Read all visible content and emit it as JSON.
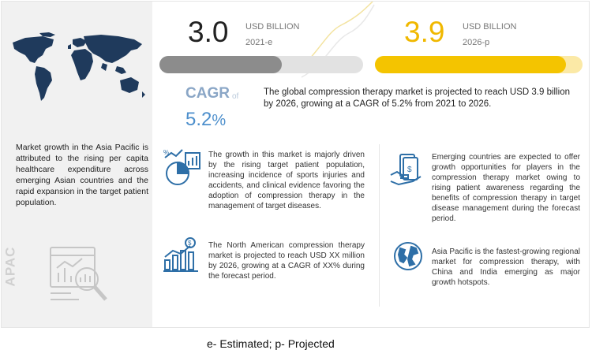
{
  "colors": {
    "gray_bar": "#8c8c8c",
    "yellow_bar": "#f4c400",
    "cagr_blue": "#4d8fcc",
    "apac_gray": "#d0d0d0",
    "map_color": "#1f3a5c",
    "icon_blue": "#2e6fa7"
  },
  "estimate_2021": {
    "value": "3.0",
    "unit": "USD BILLION",
    "year": "2021-e",
    "bar_fill_fraction": 0.6
  },
  "projection_2026": {
    "value": "3.9",
    "unit": "USD BILLION",
    "year": "2026-p",
    "bar_fill_fraction": 0.92
  },
  "cagr": {
    "label": "CAGR",
    "of": "of",
    "value": "5.2",
    "unit": "%"
  },
  "summary": "The global compression therapy market is projected to reach USD 3.9 billion by 2026, growing at a CAGR of 5.2% from 2021 to 2026.",
  "region_panel": {
    "text": "Market growth in the Asia Pacific is attributed to the rising per capita healthcare expenditure across emerging Asian countries and the rapid expansion in the target patient population.",
    "region": "APAC",
    "icons": [
      "world-map-icon",
      "analytics-magnifier-icon"
    ]
  },
  "insights": [
    {
      "icon": "growth-chart-icon",
      "text": "The growth in this market is majorly driven by the rising target patient population, increasing incidence of sports injuries and accidents, and clinical evidence favoring the adoption of compression therapy in the management of target diseases."
    },
    {
      "icon": "north-america-bar-icon",
      "text": "The North American compression therapy market is projected to reach USD XX million by 2026, growing at a CAGR of XX% during the forecast period."
    },
    {
      "icon": "money-hand-icon",
      "text": "Emerging countries are expected to offer growth opportunities for players in the compression therapy market owing to rising patient awareness regarding the benefits of compression therapy in target disease management during the forecast period."
    },
    {
      "icon": "globe-icon",
      "text": "Asia Pacific is the fastest-growing regional market for compression therapy, with China and India emerging as major growth hotspots."
    }
  ],
  "footnote": "e- Estimated; p- Projected"
}
